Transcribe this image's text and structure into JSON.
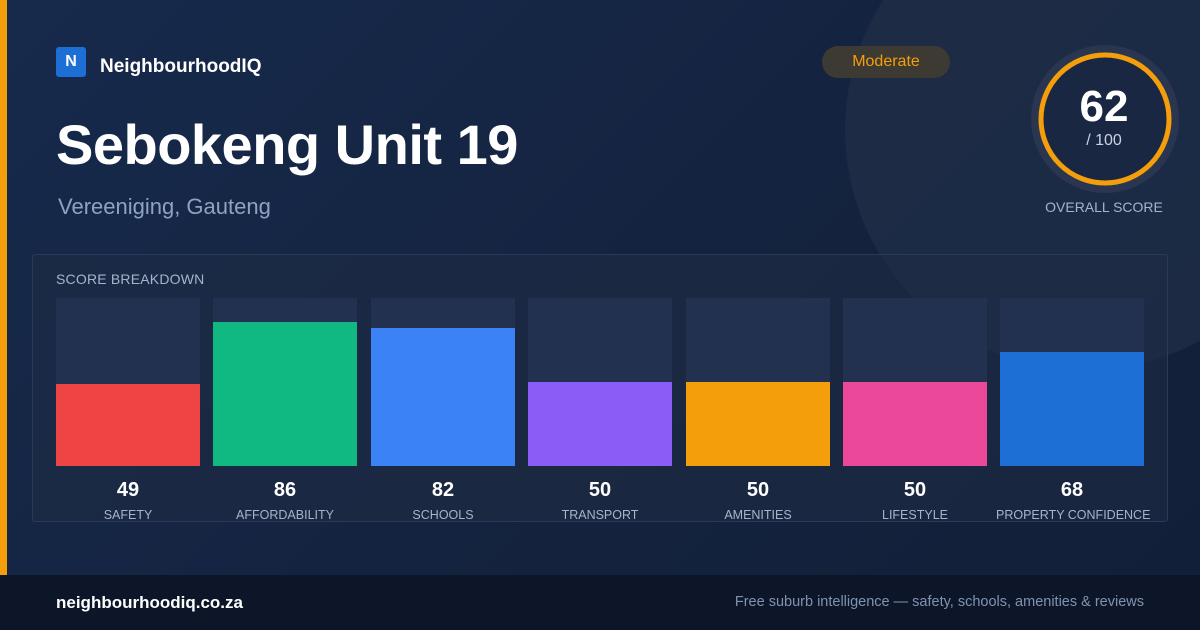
{
  "brand": {
    "logo_letter": "N",
    "name": "NeighbourhoodIQ"
  },
  "location": {
    "title": "Sebokeng Unit 19",
    "subtitle": "Vereeniging, Gauteng"
  },
  "rating_badge": "Moderate",
  "overall_score": {
    "value": "62",
    "max": "/ 100",
    "label": "OVERALL SCORE",
    "fraction": 0.62
  },
  "breakdown": {
    "title": "SCORE BREAKDOWN",
    "max": 100
  },
  "chart_data": {
    "type": "bar",
    "categories": [
      "SAFETY",
      "AFFORDABILITY",
      "SCHOOLS",
      "TRANSPORT",
      "AMENITIES",
      "LIFESTYLE",
      "PROPERTY CONFIDENCE"
    ],
    "values": [
      49,
      86,
      82,
      50,
      50,
      50,
      68
    ],
    "colors": [
      "#ef4444",
      "#10b981",
      "#3b82f6",
      "#8b5cf6",
      "#f59e0b",
      "#ec4899",
      "#1d6fd6"
    ],
    "ylim": [
      0,
      100
    ]
  },
  "footer": {
    "domain": "neighbourhoodiq.co.za",
    "tagline": "Free suburb intelligence — safety, schools, amenities & reviews"
  },
  "colors": {
    "accent": "#f59e0b",
    "background": "#13213d",
    "footer": "#0d1628"
  }
}
